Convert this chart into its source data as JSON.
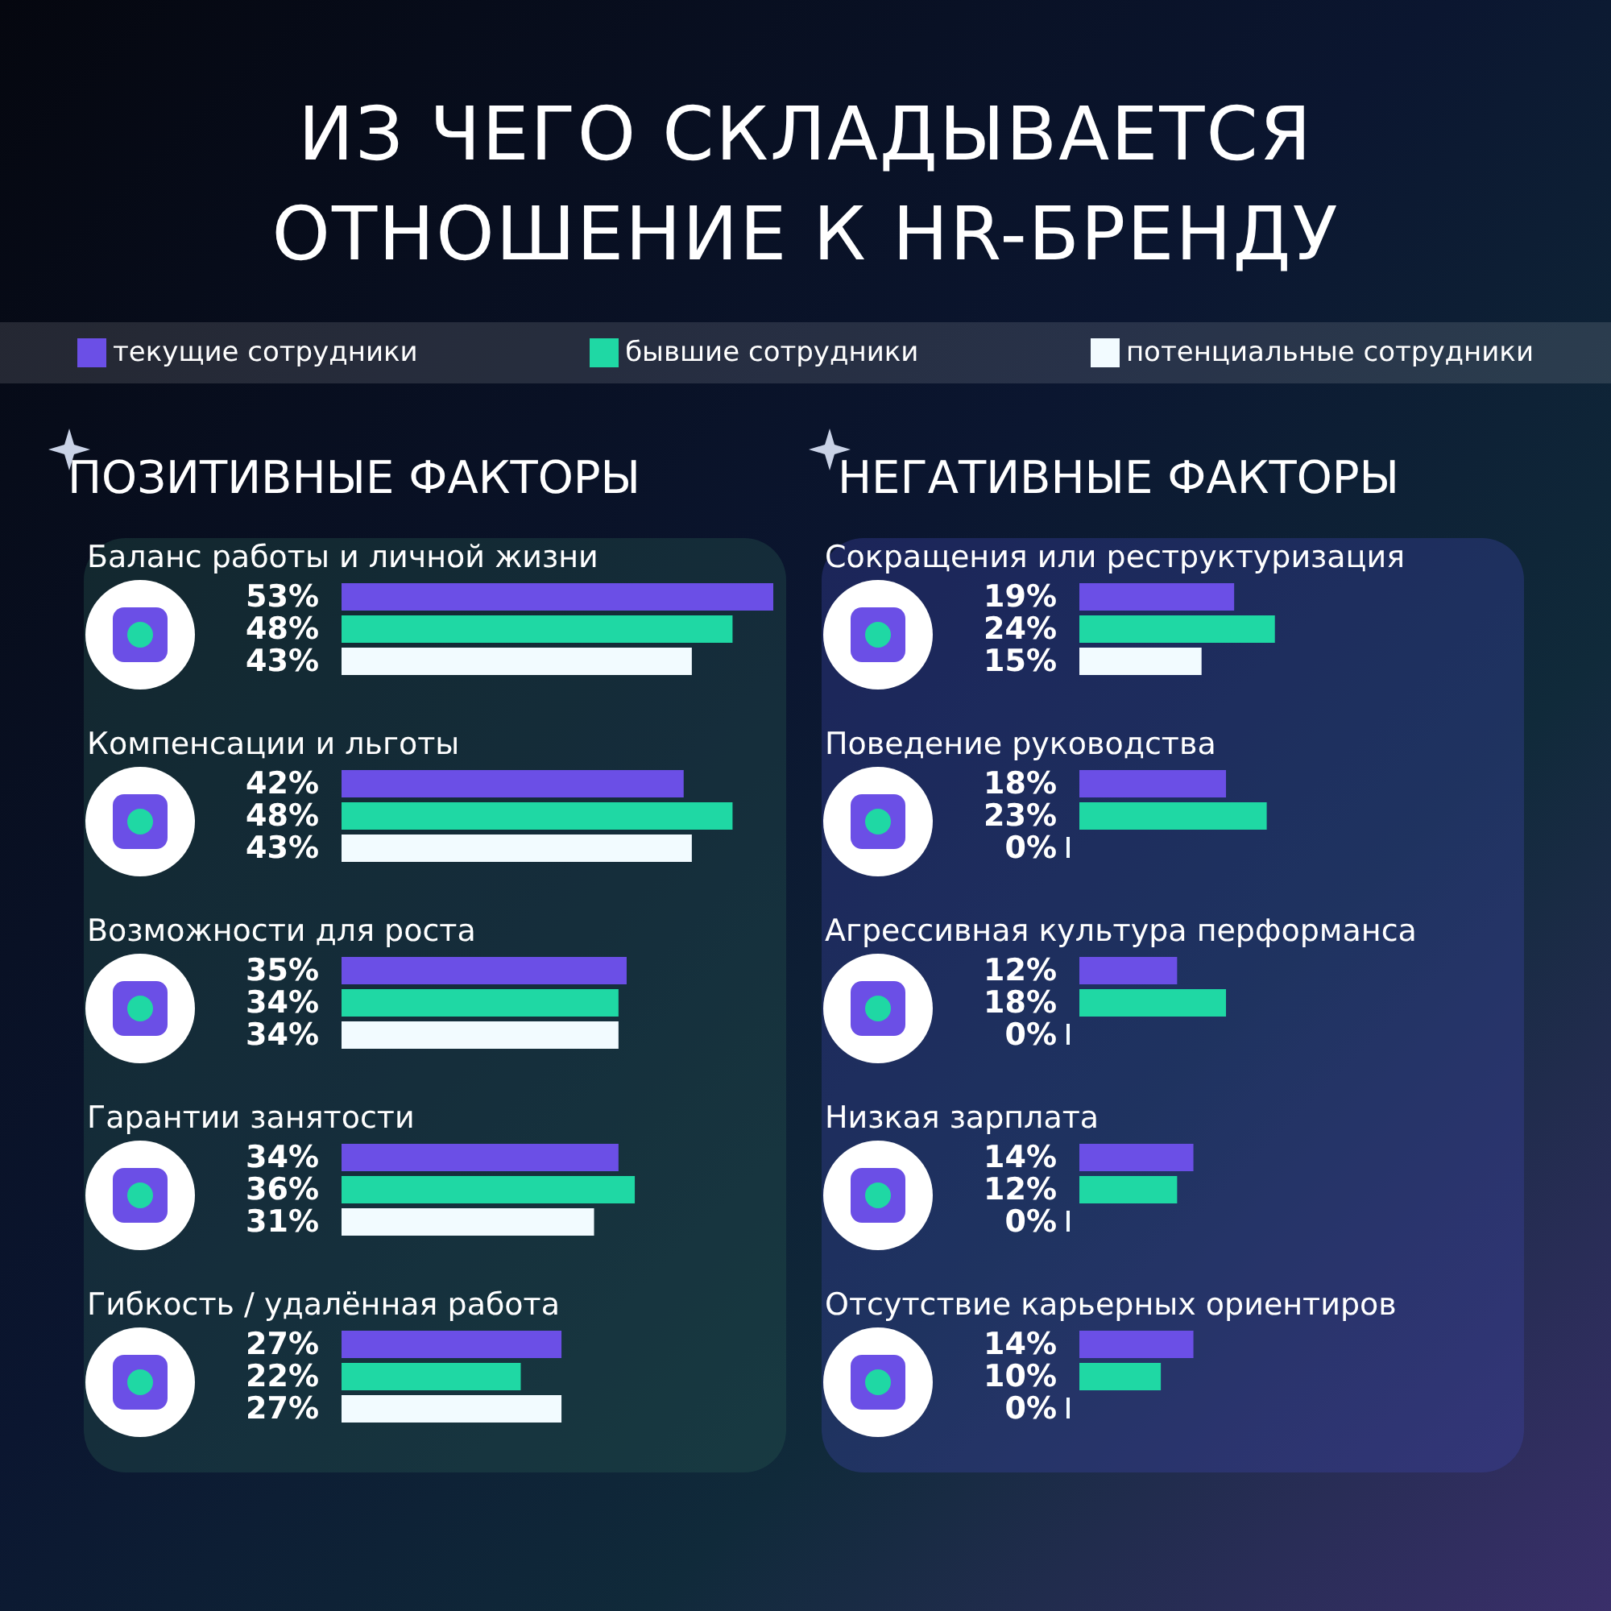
{
  "chart_data": [
    {
      "type": "bar",
      "orientation": "horizontal",
      "title": "ИЗ ЧЕГО СКЛАДЫВАЕТСЯ ОТНОШЕНИЕ К HR-БРЕНДУ",
      "subtitle": "ПОЗИТИВНЫЕ ФАКТОРЫ",
      "legend": "top",
      "categories": [
        "Баланс работы и личной жизни",
        "Компенсации и льготы",
        "Возможности для роста",
        "Гарантии занятости",
        "Гибкость / удалённая работа"
      ],
      "series": [
        {
          "name": "текущие сотрудники",
          "color": "#6b4fe6",
          "values": [
            53,
            42,
            35,
            34,
            27
          ],
          "value_labels": [
            "53%",
            "42%",
            "35%",
            "34%",
            "27%"
          ]
        },
        {
          "name": "бывшие сотрудники",
          "color": "#1fd8a4",
          "values": [
            48,
            48,
            34,
            36,
            22
          ],
          "value_labels": [
            "48%",
            "48%",
            "34%",
            "36%",
            "22%"
          ]
        },
        {
          "name": "потенциальные сотрудники",
          "color": "#f2fbff",
          "values": [
            43,
            43,
            34,
            31,
            27
          ],
          "value_labels": [
            "43%",
            "43%",
            "34%",
            "31%",
            "27%"
          ]
        }
      ]
    },
    {
      "type": "bar",
      "orientation": "horizontal",
      "subtitle": "НЕГАТИВНЫЕ ФАКТОРЫ",
      "categories": [
        "Сокращения или реструктуризация",
        "Поведение руководства",
        "Агрессивная культура перформанса",
        "Низкая зарплата",
        "Отсутствие карьерных ориентиров"
      ],
      "series": [
        {
          "color": "#6b4fe6",
          "values": [
            19,
            18,
            12,
            14,
            14
          ],
          "value_labels": [
            "19%",
            "18%",
            "12%",
            "14%",
            "14%"
          ]
        },
        {
          "color": "#1fd8a4",
          "values": [
            24,
            23,
            18,
            12,
            10
          ],
          "value_labels": [
            "24%",
            "23%",
            "18%",
            "12%",
            "10%"
          ]
        },
        {
          "color": "#f2fbff",
          "values": [
            15,
            0,
            0,
            0,
            0
          ],
          "value_labels": [
            "15%",
            "0%",
            "0%",
            "0%",
            "0%"
          ]
        }
      ]
    }
  ]
}
